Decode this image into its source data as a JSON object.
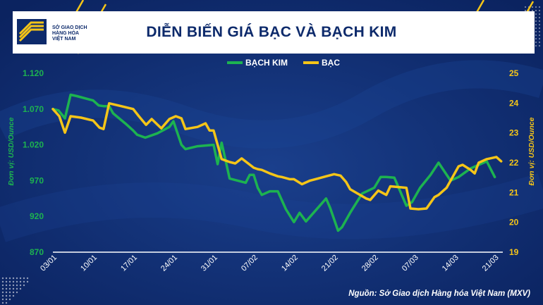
{
  "header": {
    "title": "DIỄN BIẾN GIÁ BẠC VÀ BẠCH KIM",
    "logo_lines": [
      "SỞ GIAO DỊCH",
      "HÀNG HÓA",
      "VIỆT NAM"
    ]
  },
  "source": "Nguồn: Sở Giao dịch Hàng hóa Việt Nam (MXV)",
  "colors": {
    "background": "#0d2a6b",
    "platinum": "#1db350",
    "silver": "#f5c518",
    "accent_line": "#f5c518"
  },
  "chart_data": {
    "type": "line",
    "legend_position": "top-center",
    "grid": false,
    "x_ticks": [
      "03/01",
      "10/01",
      "17/01",
      "24/01",
      "31/01",
      "07/02",
      "14/02",
      "21/02",
      "28/02",
      "07/03",
      "14/03",
      "21/03"
    ],
    "x_tick_positions": [
      0,
      5,
      10,
      15,
      20,
      25,
      30,
      35,
      40,
      45,
      50,
      55
    ],
    "left_axis": {
      "label": "Đơn vị: USD/Ounce",
      "ticks": [
        "1.120",
        "1.070",
        "1.020",
        "970",
        "920",
        "870"
      ],
      "range": [
        870,
        1120
      ]
    },
    "right_axis": {
      "label": "Đơn vị: USD/Ounce",
      "ticks": [
        "25",
        "24",
        "23",
        "22",
        "21",
        "20",
        "19"
      ],
      "range": [
        19,
        25
      ]
    },
    "series": [
      {
        "name": "BẠCH KIM",
        "axis": "left",
        "x": [
          0,
          0.7,
          1.5,
          2.2,
          3,
          5,
          5.7,
          6.3,
          7,
          7.5,
          9,
          10,
          10.5,
          11.5,
          13,
          14.5,
          15,
          16,
          16.5,
          18,
          20,
          20.5,
          21,
          22,
          23,
          24,
          24.5,
          25,
          25.5,
          26,
          27,
          28,
          29,
          30,
          30.7,
          31.5,
          34,
          34.5,
          35.5,
          36,
          37,
          38.5,
          40,
          40.8,
          41.5,
          42.5,
          44,
          44.7,
          45.7,
          47,
          48,
          49.5,
          50.5,
          52,
          54,
          55
        ],
        "values": [
          1070,
          1068,
          1057,
          1090,
          1088,
          1082,
          1075,
          1074,
          1074,
          1064,
          1050,
          1040,
          1034,
          1030,
          1036,
          1045,
          1053,
          1020,
          1014,
          1018,
          1020,
          993,
          1023,
          973,
          970,
          967,
          978,
          978,
          960,
          950,
          955,
          955,
          930,
          912,
          925,
          913,
          945,
          932,
          900,
          905,
          925,
          952,
          960,
          975,
          975,
          974,
          935,
          940,
          960,
          978,
          995,
          970,
          975,
          987,
          997,
          975
        ]
      },
      {
        "name": "BẠC",
        "axis": "left",
        "x": [
          0,
          0.8,
          1.5,
          2.2,
          3.5,
          5,
          5.8,
          6.3,
          7,
          8.5,
          10,
          10.7,
          11.6,
          12.3,
          13.5,
          14.5,
          15.3,
          16,
          16.5,
          18,
          19,
          19.5,
          20,
          21,
          22,
          22.7,
          23.5,
          25,
          25.5,
          26,
          27,
          28,
          28.5,
          29.5,
          30,
          31,
          32,
          33,
          34,
          35,
          35.8,
          36.5,
          37,
          39,
          39.5,
          40.5,
          41.5,
          42,
          44,
          44.5,
          45.5,
          46.5,
          47.5,
          48,
          49,
          50.5,
          51,
          52,
          52.5,
          53,
          54,
          55.2,
          55.8
        ],
        "values": [
          1070,
          1060,
          1037,
          1060,
          1058,
          1054,
          1044,
          1042,
          1078,
          1074,
          1070,
          1060,
          1048,
          1056,
          1043,
          1056,
          1060,
          1057,
          1042,
          1045,
          1050,
          1040,
          1040,
          1000,
          996,
          994,
          1001,
          988,
          986,
          985,
          980,
          976,
          975,
          972,
          972,
          965,
          970,
          973,
          976,
          979,
          977,
          968,
          958,
          945,
          943,
          956,
          950,
          962,
          960,
          931,
          930,
          931,
          947,
          950,
          960,
          990,
          992,
          985,
          980,
          995,
          1000,
          1003,
          997
        ]
      }
    ]
  }
}
